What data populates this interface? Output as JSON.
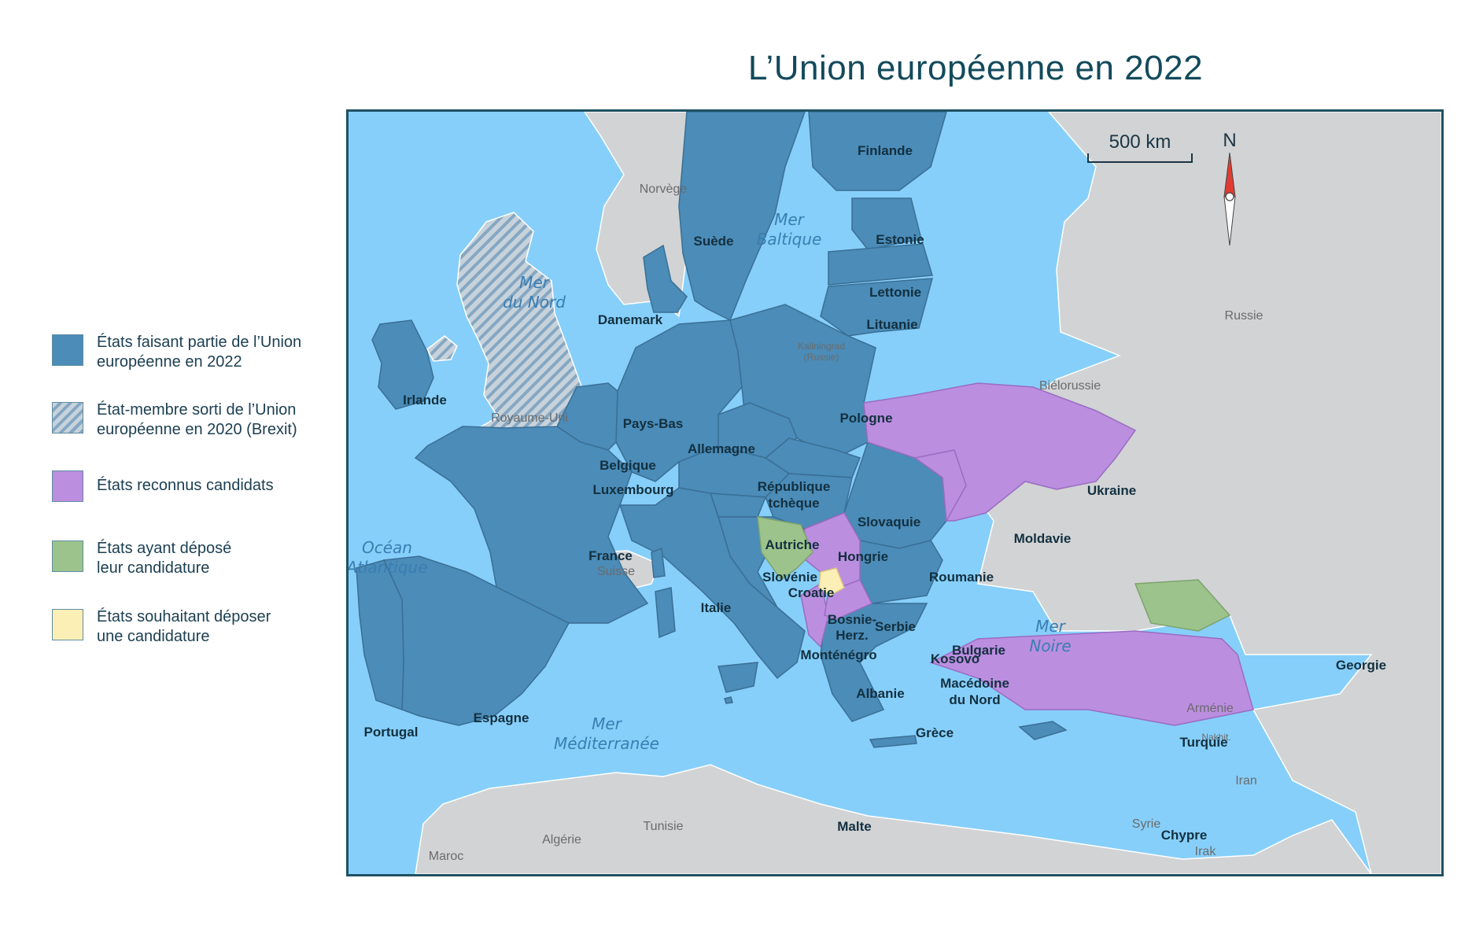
{
  "title": "L’Union européenne en 2022",
  "colors": {
    "sea": "#86cffa",
    "eu": "#4b8cb8",
    "brexit_stripe_a": "#c7d3dc",
    "brexit_stripe_b": "#86a7c2",
    "candidate": "#bb8ee0",
    "applied": "#9cc38b",
    "wishing": "#fcefb6",
    "non_eu": "#d1d3d5",
    "frame": "#1f5163",
    "title": "#134a5c"
  },
  "legend": [
    {
      "key": "eu",
      "label_line1": "États faisant partie de l’Union",
      "label_line2": "européenne en 2022"
    },
    {
      "key": "brexit",
      "label_line1": "État-membre sorti de l’Union",
      "label_line2": "européenne en 2020 (Brexit)"
    },
    {
      "key": "candidate",
      "label_line1": "États reconnus candidats",
      "label_line2": ""
    },
    {
      "key": "applied",
      "label_line1": "États ayant déposé",
      "label_line2": "leur candidature"
    },
    {
      "key": "wishing",
      "label_line1": "États souhaitant déposer",
      "label_line2": "une candidature"
    }
  ],
  "scale": {
    "label": "500 km"
  },
  "compass": {
    "label": "N"
  },
  "seas": {
    "mer_baltique": [
      "Mer",
      "Baltique"
    ],
    "mer_du_nord": [
      "Mer",
      "du Nord"
    ],
    "ocean_atlantique": [
      "Océan",
      "Atlantique"
    ],
    "mer_noire": [
      "Mer",
      "Noire"
    ],
    "mer_mediterranee": [
      "Mer",
      "Méditerranée"
    ]
  },
  "countries": {
    "finlande": "Finlande",
    "suede": "Suède",
    "estonie": "Estonie",
    "lettonie": "Lettonie",
    "lituanie": "Lituanie",
    "danemark": "Danemark",
    "irlande": "Irlande",
    "pays_bas": "Pays-Bas",
    "allemagne": "Allemagne",
    "pologne": "Pologne",
    "belgique": "Belgique",
    "luxembourg": "Luxembourg",
    "republique_tcheque": [
      "République",
      "tchèque"
    ],
    "slovaquie": "Slovaquie",
    "autriche": "Autriche",
    "hongrie": "Hongrie",
    "france": "France",
    "slovenie": "Slovénie",
    "croatie": "Croatie",
    "roumanie": "Roumanie",
    "italie": "Italie",
    "bulgarie": "Bulgarie",
    "espagne": "Espagne",
    "portugal": "Portugal",
    "grece": "Grèce",
    "malte": "Malte",
    "chypre": "Chypre",
    "ukraine": "Ukraine",
    "moldavie": "Moldavie",
    "serbie": "Serbie",
    "montenegro": "Monténégro",
    "albanie": "Albanie",
    "macedoine": [
      "Macédoine",
      "du Nord"
    ],
    "turquie": "Turquie",
    "bosnie": [
      "Bosnie-",
      "Herz."
    ],
    "georgie": "Georgie",
    "kosovo": "Kosovo"
  },
  "other_countries": {
    "norvege": "Norvège",
    "russie": "Russie",
    "bielorussie": "Biélorussie",
    "kaliningrad": [
      "Kaliningrad",
      "(Russie)"
    ],
    "royaume_uni": "Royaume-Uni",
    "suisse": "Suisse",
    "armenie": "Arménie",
    "nakhit": "Nakhit.",
    "iran": "Iran",
    "syrie": "Syrie",
    "irak": "Irak",
    "maroc": "Maroc",
    "algerie": "Algérie",
    "tunisie": "Tunisie"
  }
}
